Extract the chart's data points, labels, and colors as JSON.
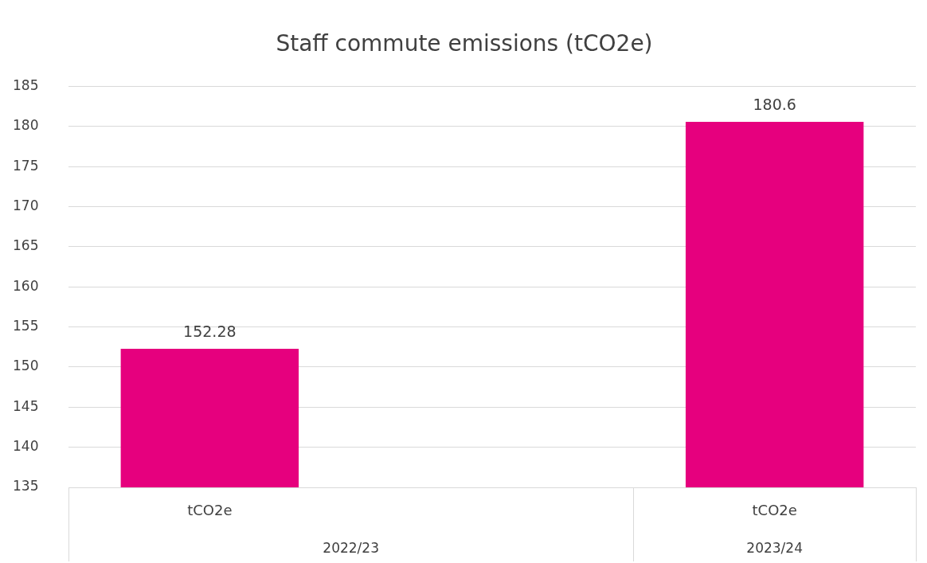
{
  "chart_data": {
    "type": "bar",
    "title": "Staff commute emissions (tCO2e)",
    "categories": [
      "tCO2e",
      null,
      "tCO2e"
    ],
    "values": [
      152.28,
      null,
      180.6
    ],
    "color": "#e6007e",
    "ylim": [
      135,
      185
    ],
    "yticks": [
      135,
      140,
      145,
      150,
      155,
      160,
      165,
      170,
      175,
      180,
      185
    ],
    "grid": "y",
    "data_labels": true,
    "legend": false,
    "annotations": [
      "2022/23",
      "2023/24"
    ]
  }
}
